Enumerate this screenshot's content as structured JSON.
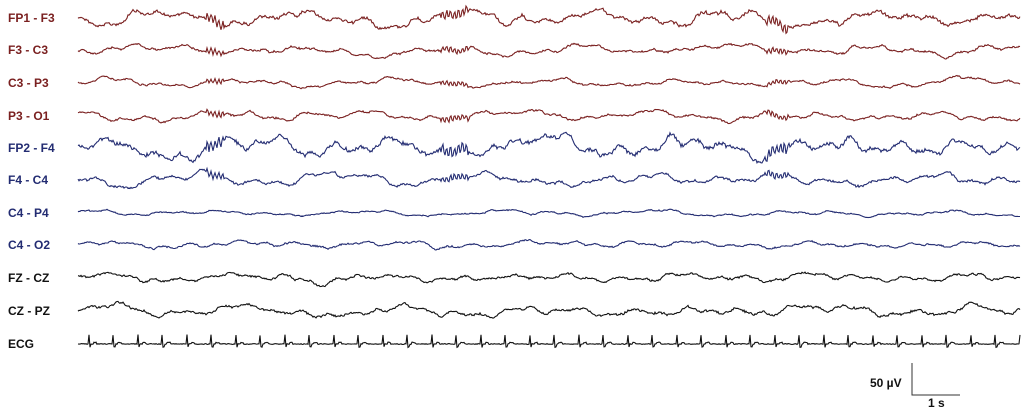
{
  "chart_data": {
    "type": "line",
    "title": "",
    "colors": {
      "left_hemisphere": "#7a2020",
      "right_hemisphere": "#232c72",
      "midline": "#111111"
    },
    "series": [
      {
        "name": "FP1 - F3",
        "color": "#7a2020"
      },
      {
        "name": "F3 - C3",
        "color": "#7a2020"
      },
      {
        "name": "C3 - P3",
        "color": "#7a2020"
      },
      {
        "name": "P3 - O1",
        "color": "#7a2020"
      },
      {
        "name": "FP2 - F4",
        "color": "#232c72"
      },
      {
        "name": "F4 - C4",
        "color": "#232c72"
      },
      {
        "name": "C4 - P4",
        "color": "#232c72"
      },
      {
        "name": "C4 - O2",
        "color": "#232c72"
      },
      {
        "name": "FZ - CZ",
        "color": "#111111"
      },
      {
        "name": "CZ - PZ",
        "color": "#111111"
      },
      {
        "name": "ECG",
        "color": "#111111"
      }
    ],
    "scale_bar": {
      "amplitude_label": "50 µV",
      "time_label": "1 s"
    }
  }
}
